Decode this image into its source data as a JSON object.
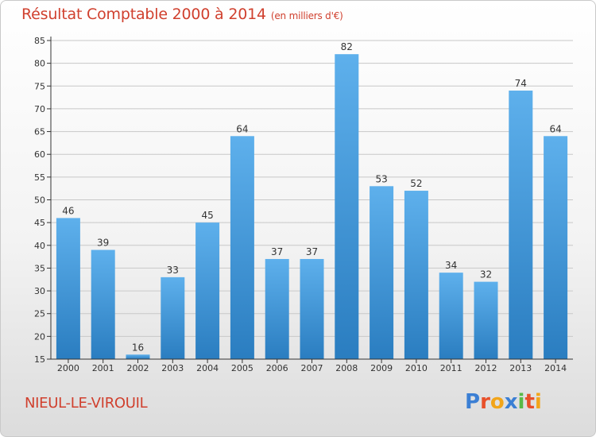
{
  "header": {
    "title": "Résultat Comptable 2000 à 2014",
    "unit": "(en milliers d'€)"
  },
  "footer": {
    "commune": "NIEUL-LE-VIROUIL",
    "logo_letters": [
      "P",
      "r",
      "o",
      "x",
      "i",
      "t",
      "i"
    ],
    "logo_colors": [
      "#3b7fd4",
      "#e8502a",
      "#f2a51a",
      "#3b7fd4",
      "#58b947",
      "#e8502a",
      "#f2a51a"
    ]
  },
  "chart_data": {
    "type": "bar",
    "title": "Résultat Comptable 2000 à 2014",
    "xlabel": "",
    "ylabel": "",
    "ylim": [
      15,
      85
    ],
    "yticks": [
      15,
      20,
      25,
      30,
      35,
      40,
      45,
      50,
      55,
      60,
      65,
      70,
      75,
      80,
      85
    ],
    "grid": true,
    "categories": [
      "2000",
      "2001",
      "2002",
      "2003",
      "2004",
      "2005",
      "2006",
      "2007",
      "2008",
      "2009",
      "2010",
      "2011",
      "2012",
      "2013",
      "2014"
    ],
    "values": [
      46,
      39,
      16,
      33,
      45,
      64,
      37,
      37,
      82,
      53,
      52,
      34,
      32,
      74,
      64
    ],
    "colors": {
      "bar_light": "#5eb0ec",
      "bar_dark": "#2a7dc0",
      "grid": "#c8c8c8",
      "axis": "#333333"
    }
  }
}
